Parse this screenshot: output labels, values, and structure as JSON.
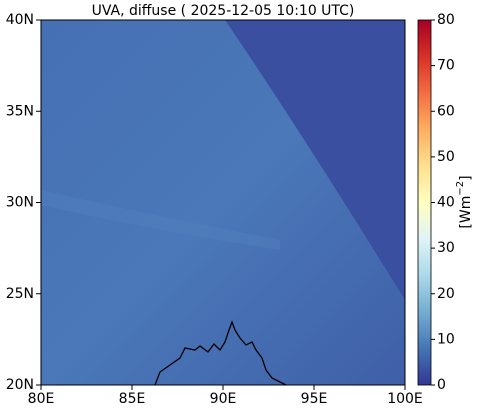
{
  "chart_data": {
    "type": "map",
    "title": "UVA, diffuse ( 2025-12-05 10:10 UTC)",
    "xlim": [
      80,
      100
    ],
    "xticks": [
      {
        "value": 80,
        "label": "80E"
      },
      {
        "value": 85,
        "label": "85E"
      },
      {
        "value": 90,
        "label": "90E"
      },
      {
        "value": 95,
        "label": "95E"
      },
      {
        "value": 100,
        "label": "100E"
      }
    ],
    "ylim": [
      20,
      40
    ],
    "yticks": [
      {
        "value": 20,
        "label": "20N"
      },
      {
        "value": 25,
        "label": "25N"
      },
      {
        "value": 30,
        "label": "30N"
      },
      {
        "value": 35,
        "label": "35N"
      },
      {
        "value": 40,
        "label": "40N"
      }
    ],
    "colorbar": {
      "lim": [
        0,
        80
      ],
      "ticks": [
        0,
        10,
        20,
        30,
        40,
        50,
        60,
        70,
        80
      ],
      "label": {
        "base": "[Wm",
        "superscript": "−2",
        "close": "]"
      },
      "colors": [
        "#313695",
        "#4575b4",
        "#74add1",
        "#abd9e9",
        "#e0f3f8",
        "#ffffbf",
        "#fee090",
        "#fdae61",
        "#f46d43",
        "#d73027",
        "#a50026"
      ]
    }
  }
}
